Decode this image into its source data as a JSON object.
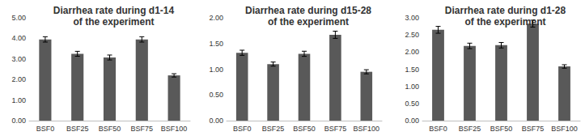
{
  "chart_data": [
    {
      "type": "bar",
      "title": "Diarrhea rate during d1-14\nof the experiment",
      "categories": [
        "BSF0",
        "BSF25",
        "BSF50",
        "BSF75",
        "BSF100"
      ],
      "values": [
        3.95,
        3.25,
        3.07,
        3.95,
        2.2
      ],
      "errors": [
        0.13,
        0.12,
        0.12,
        0.13,
        0.08
      ],
      "color": "#595959",
      "ylim": [
        0,
        5
      ],
      "yticks": [
        {
          "value": 0,
          "label": "0.00"
        },
        {
          "value": 1,
          "label": "1.00"
        },
        {
          "value": 2,
          "label": "2.00"
        },
        {
          "value": 3,
          "label": "3.00"
        },
        {
          "value": 4,
          "label": "4.00"
        },
        {
          "value": 5,
          "label": "5.00"
        }
      ],
      "grid": false
    },
    {
      "type": "bar",
      "title": "Diarrhea rate during d15-28\nof the experiment",
      "categories": [
        "BSF0",
        "BSF25",
        "BSF50",
        "BSF75",
        "BSF100"
      ],
      "values": [
        1.32,
        1.1,
        1.3,
        1.67,
        0.95
      ],
      "errors": [
        0.05,
        0.04,
        0.05,
        0.07,
        0.04
      ],
      "color": "#595959",
      "ylim": [
        0,
        2
      ],
      "yticks": [
        {
          "value": 0,
          "label": "0.00"
        },
        {
          "value": 0.5,
          "label": "0.50"
        },
        {
          "value": 1,
          "label": "1.00"
        },
        {
          "value": 1.5,
          "label": "1.50"
        },
        {
          "value": 2,
          "label": "2.00"
        }
      ],
      "grid": false
    },
    {
      "type": "bar",
      "title": "Diarrhea rate during d1-28\nof the experiment",
      "categories": [
        "BSF0",
        "BSF25",
        "BSF50",
        "BSF75",
        "BSF100"
      ],
      "values": [
        2.65,
        2.18,
        2.2,
        2.83,
        1.58
      ],
      "errors": [
        0.1,
        0.08,
        0.08,
        0.1,
        0.05
      ],
      "color": "#595959",
      "ylim": [
        0,
        3
      ],
      "yticks": [
        {
          "value": 0,
          "label": "0.00"
        },
        {
          "value": 0.5,
          "label": "0.50"
        },
        {
          "value": 1,
          "label": "1.00"
        },
        {
          "value": 1.5,
          "label": "1.50"
        },
        {
          "value": 2,
          "label": "2.00"
        },
        {
          "value": 2.5,
          "label": "2.50"
        },
        {
          "value": 3,
          "label": "3.00"
        }
      ],
      "grid": false
    }
  ]
}
